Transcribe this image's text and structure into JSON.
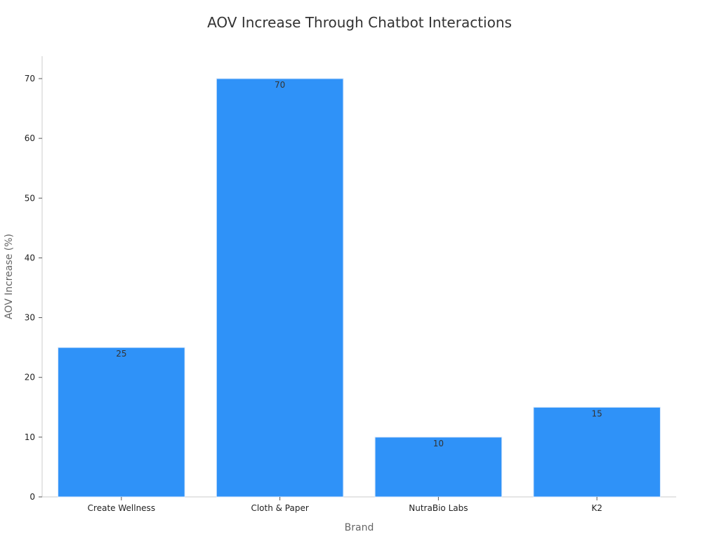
{
  "chart_data": {
    "type": "bar",
    "title": "AOV Increase Through Chatbot Interactions",
    "xlabel": "Brand",
    "ylabel": "AOV Increase (%)",
    "categories": [
      "Create Wellness",
      "Cloth & Paper",
      "NutraBio Labs",
      "K2"
    ],
    "values": [
      25,
      70,
      10,
      15
    ],
    "data_labels": [
      "25",
      "70",
      "10",
      "15"
    ],
    "y_ticks": [
      "0",
      "10",
      "20",
      "30",
      "40",
      "50",
      "60",
      "70"
    ],
    "ylim": [
      0,
      70
    ],
    "grid": false,
    "legend": "none",
    "colors": {
      "bar": "#2f92f8",
      "bar_edge": "#d9e8fb",
      "axis": "#cccccc"
    }
  }
}
